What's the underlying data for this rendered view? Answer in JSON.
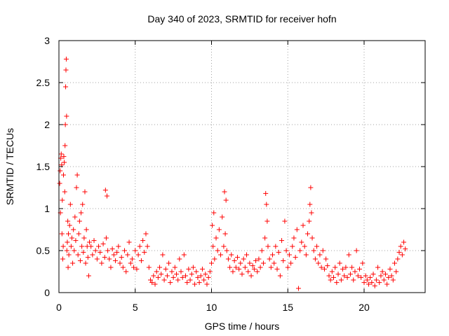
{
  "chart_data": {
    "type": "scatter",
    "title": "Day 340 of 2023, SRMTID for receiver hofn",
    "xlabel": "GPS time / hours",
    "ylabel": "SRMTID / TECUs",
    "xlim": [
      0,
      24
    ],
    "ylim": [
      0,
      3
    ],
    "xticks": [
      0,
      5,
      10,
      15,
      20
    ],
    "yticks": [
      0,
      0.5,
      1,
      1.5,
      2,
      2.5,
      3
    ],
    "xtick_labels": [
      "0",
      "5",
      "10",
      "15",
      "20"
    ],
    "ytick_labels": [
      "0",
      "0.5",
      "1",
      "1.5",
      "2",
      "2.5",
      "3"
    ],
    "grid": true,
    "marker": "+",
    "color": "#ff0000",
    "series": [
      {
        "name": "SRMTID",
        "points": [
          [
            0.05,
            1.3
          ],
          [
            0.08,
            1.45
          ],
          [
            0.1,
            0.95
          ],
          [
            0.12,
            1.6
          ],
          [
            0.15,
            1.65
          ],
          [
            0.18,
            1.52
          ],
          [
            0.2,
            0.7
          ],
          [
            0.22,
            1.1
          ],
          [
            0.25,
            0.4
          ],
          [
            0.28,
            0.55
          ],
          [
            0.3,
            1.4
          ],
          [
            0.32,
            1.62
          ],
          [
            0.35,
            1.55
          ],
          [
            0.38,
            1.2
          ],
          [
            0.4,
            1.75
          ],
          [
            0.42,
            2.0
          ],
          [
            0.44,
            2.45
          ],
          [
            0.46,
            2.65
          ],
          [
            0.48,
            2.78
          ],
          [
            0.5,
            2.1
          ],
          [
            0.52,
            0.5
          ],
          [
            0.55,
            0.6
          ],
          [
            0.58,
            0.85
          ],
          [
            0.6,
            0.3
          ],
          [
            0.62,
            0.7
          ],
          [
            0.65,
            0.45
          ],
          [
            0.7,
            0.8
          ],
          [
            0.75,
            1.05
          ],
          [
            0.8,
            0.55
          ],
          [
            0.85,
            0.65
          ],
          [
            0.9,
            0.35
          ],
          [
            0.95,
            0.75
          ],
          [
            1.0,
            0.5
          ],
          [
            1.05,
            0.9
          ],
          [
            1.1,
            0.62
          ],
          [
            1.15,
            1.25
          ],
          [
            1.2,
            1.4
          ],
          [
            1.25,
            0.45
          ],
          [
            1.3,
            0.7
          ],
          [
            1.35,
            0.85
          ],
          [
            1.4,
            0.38
          ],
          [
            1.45,
            0.95
          ],
          [
            1.5,
            0.55
          ],
          [
            1.55,
            1.05
          ],
          [
            1.6,
            0.48
          ],
          [
            1.65,
            0.65
          ],
          [
            1.7,
            1.2
          ],
          [
            1.75,
            0.35
          ],
          [
            1.8,
            0.75
          ],
          [
            1.85,
            0.55
          ],
          [
            1.9,
            0.42
          ],
          [
            1.95,
            0.2
          ],
          [
            2.0,
            0.6
          ],
          [
            2.1,
            0.55
          ],
          [
            2.2,
            0.45
          ],
          [
            2.3,
            0.62
          ],
          [
            2.4,
            0.5
          ],
          [
            2.5,
            0.4
          ],
          [
            2.6,
            0.55
          ],
          [
            2.7,
            0.48
          ],
          [
            2.8,
            0.35
          ],
          [
            2.9,
            0.58
          ],
          [
            3.0,
            0.42
          ],
          [
            3.05,
            1.22
          ],
          [
            3.1,
            0.65
          ],
          [
            3.15,
            1.15
          ],
          [
            3.2,
            0.5
          ],
          [
            3.3,
            0.4
          ],
          [
            3.4,
            0.3
          ],
          [
            3.5,
            0.52
          ],
          [
            3.6,
            0.45
          ],
          [
            3.7,
            0.38
          ],
          [
            3.8,
            0.48
          ],
          [
            3.9,
            0.55
          ],
          [
            4.0,
            0.35
          ],
          [
            4.1,
            0.42
          ],
          [
            4.2,
            0.3
          ],
          [
            4.3,
            0.5
          ],
          [
            4.4,
            0.25
          ],
          [
            4.5,
            0.45
          ],
          [
            4.6,
            0.6
          ],
          [
            4.7,
            0.35
          ],
          [
            4.8,
            0.4
          ],
          [
            4.9,
            0.3
          ],
          [
            5.0,
            0.5
          ],
          [
            5.1,
            0.28
          ],
          [
            5.2,
            0.45
          ],
          [
            5.3,
            0.55
          ],
          [
            5.4,
            0.38
          ],
          [
            5.5,
            0.62
          ],
          [
            5.6,
            0.48
          ],
          [
            5.7,
            0.7
          ],
          [
            5.8,
            0.55
          ],
          [
            5.9,
            0.3
          ],
          [
            6.0,
            0.15
          ],
          [
            6.1,
            0.12
          ],
          [
            6.2,
            0.2
          ],
          [
            6.3,
            0.1
          ],
          [
            6.4,
            0.25
          ],
          [
            6.5,
            0.18
          ],
          [
            6.6,
            0.3
          ],
          [
            6.7,
            0.22
          ],
          [
            6.8,
            0.45
          ],
          [
            6.9,
            0.15
          ],
          [
            7.0,
            0.28
          ],
          [
            7.1,
            0.2
          ],
          [
            7.2,
            0.35
          ],
          [
            7.3,
            0.12
          ],
          [
            7.4,
            0.25
          ],
          [
            7.5,
            0.18
          ],
          [
            7.6,
            0.3
          ],
          [
            7.7,
            0.22
          ],
          [
            7.8,
            0.15
          ],
          [
            7.9,
            0.4
          ],
          [
            8.0,
            0.25
          ],
          [
            8.1,
            0.18
          ],
          [
            8.2,
            0.45
          ],
          [
            8.3,
            0.2
          ],
          [
            8.4,
            0.12
          ],
          [
            8.5,
            0.28
          ],
          [
            8.6,
            0.15
          ],
          [
            8.7,
            0.22
          ],
          [
            8.8,
            0.3
          ],
          [
            8.9,
            0.1
          ],
          [
            9.0,
            0.25
          ],
          [
            9.1,
            0.18
          ],
          [
            9.2,
            0.12
          ],
          [
            9.3,
            0.2
          ],
          [
            9.4,
            0.28
          ],
          [
            9.5,
            0.15
          ],
          [
            9.6,
            0.22
          ],
          [
            9.7,
            0.1
          ],
          [
            9.8,
            0.18
          ],
          [
            9.9,
            0.25
          ],
          [
            10.0,
            0.35
          ],
          [
            10.05,
            0.8
          ],
          [
            10.1,
            0.55
          ],
          [
            10.15,
            0.95
          ],
          [
            10.2,
            0.4
          ],
          [
            10.3,
            0.65
          ],
          [
            10.4,
            0.5
          ],
          [
            10.5,
            0.75
          ],
          [
            10.6,
            0.45
          ],
          [
            10.7,
            0.9
          ],
          [
            10.8,
            0.55
          ],
          [
            10.85,
            1.2
          ],
          [
            10.9,
            0.7
          ],
          [
            10.95,
            1.1
          ],
          [
            11.0,
            0.5
          ],
          [
            11.1,
            0.4
          ],
          [
            11.2,
            0.3
          ],
          [
            11.3,
            0.45
          ],
          [
            11.4,
            0.25
          ],
          [
            11.5,
            0.38
          ],
          [
            11.6,
            0.3
          ],
          [
            11.7,
            0.42
          ],
          [
            11.8,
            0.28
          ],
          [
            11.9,
            0.35
          ],
          [
            12.0,
            0.22
          ],
          [
            12.1,
            0.4
          ],
          [
            12.2,
            0.3
          ],
          [
            12.3,
            0.45
          ],
          [
            12.4,
            0.25
          ],
          [
            12.5,
            0.35
          ],
          [
            12.6,
            0.2
          ],
          [
            12.7,
            0.32
          ],
          [
            12.8,
            0.28
          ],
          [
            12.9,
            0.38
          ],
          [
            13.0,
            0.25
          ],
          [
            13.1,
            0.4
          ],
          [
            13.2,
            0.3
          ],
          [
            13.3,
            0.5
          ],
          [
            13.4,
            0.35
          ],
          [
            13.5,
            0.65
          ],
          [
            13.55,
            1.18
          ],
          [
            13.6,
            1.05
          ],
          [
            13.65,
            0.85
          ],
          [
            13.7,
            0.55
          ],
          [
            13.8,
            0.4
          ],
          [
            13.9,
            0.3
          ],
          [
            14.0,
            0.45
          ],
          [
            14.1,
            0.35
          ],
          [
            14.2,
            0.55
          ],
          [
            14.3,
            0.28
          ],
          [
            14.4,
            0.48
          ],
          [
            14.5,
            0.2
          ],
          [
            14.6,
            0.62
          ],
          [
            14.7,
            0.38
          ],
          [
            14.8,
            0.85
          ],
          [
            14.9,
            0.5
          ],
          [
            15.0,
            0.3
          ],
          [
            15.1,
            0.45
          ],
          [
            15.2,
            0.35
          ],
          [
            15.3,
            0.55
          ],
          [
            15.4,
            0.65
          ],
          [
            15.5,
            0.42
          ],
          [
            15.6,
            0.75
          ],
          [
            15.7,
            0.05
          ],
          [
            15.8,
            0.5
          ],
          [
            15.9,
            0.6
          ],
          [
            16.0,
            0.8
          ],
          [
            16.1,
            0.55
          ],
          [
            16.2,
            0.45
          ],
          [
            16.3,
            0.7
          ],
          [
            16.4,
            0.85
          ],
          [
            16.45,
            1.05
          ],
          [
            16.5,
            1.25
          ],
          [
            16.55,
            0.95
          ],
          [
            16.6,
            0.65
          ],
          [
            16.7,
            0.5
          ],
          [
            16.8,
            0.4
          ],
          [
            16.9,
            0.55
          ],
          [
            17.0,
            0.35
          ],
          [
            17.1,
            0.45
          ],
          [
            17.2,
            0.3
          ],
          [
            17.3,
            0.5
          ],
          [
            17.4,
            0.28
          ],
          [
            17.5,
            0.4
          ],
          [
            17.6,
            0.32
          ],
          [
            17.7,
            0.2
          ],
          [
            17.8,
            0.15
          ],
          [
            17.9,
            0.25
          ],
          [
            18.0,
            0.18
          ],
          [
            18.1,
            0.3
          ],
          [
            18.2,
            0.12
          ],
          [
            18.3,
            0.22
          ],
          [
            18.4,
            0.35
          ],
          [
            18.5,
            0.15
          ],
          [
            18.6,
            0.28
          ],
          [
            18.7,
            0.2
          ],
          [
            18.8,
            0.3
          ],
          [
            18.9,
            0.18
          ],
          [
            19.0,
            0.45
          ],
          [
            19.1,
            0.22
          ],
          [
            19.2,
            0.3
          ],
          [
            19.3,
            0.15
          ],
          [
            19.4,
            0.25
          ],
          [
            19.5,
            0.5
          ],
          [
            19.6,
            0.2
          ],
          [
            19.7,
            0.28
          ],
          [
            19.8,
            0.18
          ],
          [
            19.9,
            0.35
          ],
          [
            20.0,
            0.12
          ],
          [
            20.1,
            0.2
          ],
          [
            20.2,
            0.15
          ],
          [
            20.3,
            0.1
          ],
          [
            20.4,
            0.18
          ],
          [
            20.5,
            0.12
          ],
          [
            20.6,
            0.22
          ],
          [
            20.7,
            0.08
          ],
          [
            20.8,
            0.15
          ],
          [
            20.9,
            0.3
          ],
          [
            21.0,
            0.12
          ],
          [
            21.1,
            0.2
          ],
          [
            21.2,
            0.25
          ],
          [
            21.3,
            0.15
          ],
          [
            21.4,
            0.22
          ],
          [
            21.5,
            0.1
          ],
          [
            21.6,
            0.18
          ],
          [
            21.7,
            0.28
          ],
          [
            21.8,
            0.2
          ],
          [
            21.9,
            0.15
          ],
          [
            22.0,
            0.35
          ],
          [
            22.1,
            0.25
          ],
          [
            22.2,
            0.4
          ],
          [
            22.3,
            0.48
          ],
          [
            22.4,
            0.55
          ],
          [
            22.5,
            0.45
          ],
          [
            22.6,
            0.6
          ],
          [
            22.7,
            0.52
          ]
        ]
      }
    ]
  }
}
